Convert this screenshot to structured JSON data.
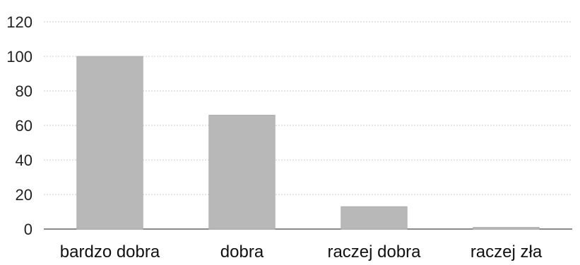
{
  "chart_data": {
    "type": "bar",
    "categories": [
      "bardzo dobra",
      "dobra",
      "raczej dobra",
      "raczej zła"
    ],
    "values": [
      100,
      66,
      13,
      1
    ],
    "yticks": [
      "0",
      "20",
      "40",
      "60",
      "80",
      "100",
      "120"
    ],
    "ylim": [
      0,
      120
    ],
    "grid": true,
    "bar_color": "#b8b8b8",
    "gridline_color": "#cfcfcf",
    "axis_color": "#444444"
  }
}
